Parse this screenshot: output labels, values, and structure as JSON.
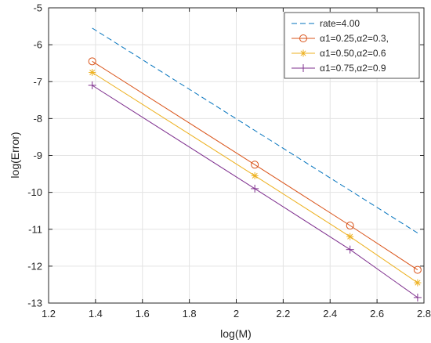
{
  "chart_data": {
    "type": "line",
    "title": "",
    "xlabel": "log(M)",
    "ylabel": "log(Error)",
    "xlim": [
      1.2,
      2.8
    ],
    "ylim": [
      -13,
      -5
    ],
    "xticks": [
      "1.2",
      "1.4",
      "1.6",
      "1.8",
      "2",
      "2.2",
      "2.4",
      "2.6",
      "2.8"
    ],
    "yticks": [
      "-5",
      "-6",
      "-7",
      "-8",
      "-9",
      "-10",
      "-11",
      "-12",
      "-13"
    ],
    "xtick_values": [
      1.2,
      1.4,
      1.6,
      1.8,
      2.0,
      2.2,
      2.4,
      2.6,
      2.8
    ],
    "ytick_values": [
      -5,
      -6,
      -7,
      -8,
      -9,
      -10,
      -11,
      -12,
      -13
    ],
    "grid": true,
    "legend_position": "top-right",
    "series": [
      {
        "name": "rate=4.00",
        "x": [
          1.386,
          2.773
        ],
        "y": [
          -5.55,
          -11.1
        ],
        "color": "#0072BD",
        "line_style": "dashed",
        "marker": "none"
      },
      {
        "name": "α1=0.25,α2=0.3,",
        "x": [
          1.386,
          2.079,
          2.485,
          2.773
        ],
        "y": [
          -6.45,
          -9.25,
          -10.9,
          -12.1
        ],
        "color": "#D95319",
        "line_style": "solid",
        "marker": "circle"
      },
      {
        "name": "α1=0.50,α2=0.6",
        "x": [
          1.386,
          2.079,
          2.485,
          2.773
        ],
        "y": [
          -6.75,
          -9.55,
          -11.2,
          -12.45
        ],
        "color": "#EDB120",
        "line_style": "solid",
        "marker": "asterisk"
      },
      {
        "name": "α1=0.75,α2=0.9",
        "x": [
          1.386,
          2.079,
          2.485,
          2.773
        ],
        "y": [
          -7.1,
          -9.9,
          -11.55,
          -12.85
        ],
        "color": "#7E2F8E",
        "line_style": "solid",
        "marker": "plus"
      }
    ]
  }
}
